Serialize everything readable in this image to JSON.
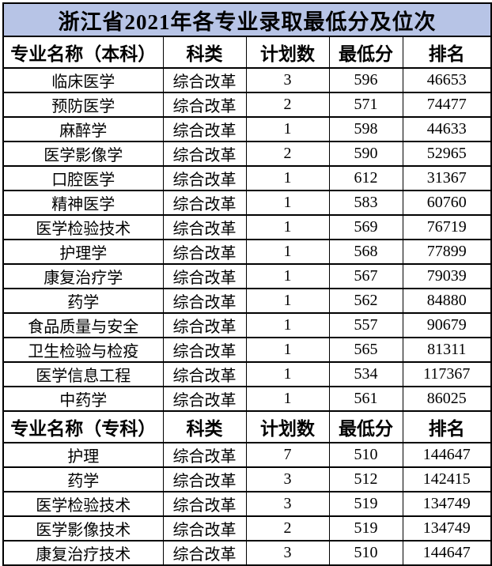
{
  "title": "浙江省2021年各专业录取最低分及位次",
  "colors": {
    "title_bg": "#b7c4e6",
    "border": "#000000",
    "background": "#ffffff",
    "text": "#000000"
  },
  "sections": [
    {
      "header": [
        "专业名称（本科）",
        "科类",
        "计划数",
        "最低分",
        "排名"
      ],
      "rows": [
        [
          "临床医学",
          "综合改革",
          "3",
          "596",
          "46653"
        ],
        [
          "预防医学",
          "综合改革",
          "2",
          "571",
          "74477"
        ],
        [
          "麻醉学",
          "综合改革",
          "1",
          "598",
          "44633"
        ],
        [
          "医学影像学",
          "综合改革",
          "2",
          "590",
          "52965"
        ],
        [
          "口腔医学",
          "综合改革",
          "1",
          "612",
          "31367"
        ],
        [
          "精神医学",
          "综合改革",
          "1",
          "583",
          "60760"
        ],
        [
          "医学检验技术",
          "综合改革",
          "1",
          "569",
          "76719"
        ],
        [
          "护理学",
          "综合改革",
          "1",
          "568",
          "77899"
        ],
        [
          "康复治疗学",
          "综合改革",
          "1",
          "567",
          "79039"
        ],
        [
          "药学",
          "综合改革",
          "1",
          "562",
          "84880"
        ],
        [
          "食品质量与安全",
          "综合改革",
          "1",
          "557",
          "90679"
        ],
        [
          "卫生检验与检疫",
          "综合改革",
          "1",
          "565",
          "81311"
        ],
        [
          "医学信息工程",
          "综合改革",
          "1",
          "534",
          "117367"
        ],
        [
          "中药学",
          "综合改革",
          "1",
          "561",
          "86025"
        ]
      ]
    },
    {
      "header": [
        "专业名称（专科）",
        "科类",
        "计划数",
        "最低分",
        "排名"
      ],
      "rows": [
        [
          "护理",
          "综合改革",
          "7",
          "510",
          "144647"
        ],
        [
          "药学",
          "综合改革",
          "3",
          "512",
          "142415"
        ],
        [
          "医学检验技术",
          "综合改革",
          "3",
          "519",
          "134749"
        ],
        [
          "医学影像技术",
          "综合改革",
          "2",
          "519",
          "134749"
        ],
        [
          "康复治疗技术",
          "综合改革",
          "3",
          "510",
          "144647"
        ]
      ]
    }
  ]
}
